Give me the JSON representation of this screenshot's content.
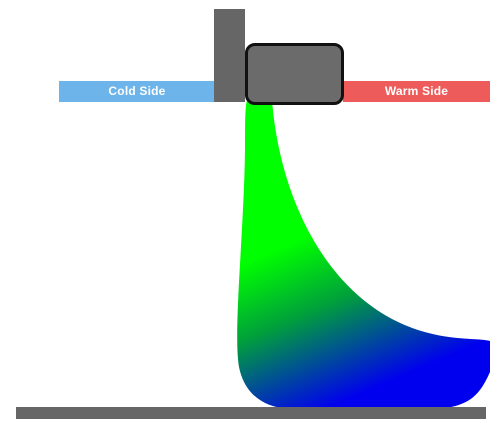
{
  "labels": {
    "cold": "Cold Side",
    "warm": "Warm Side"
  },
  "colors": {
    "cold": "#6db4ea",
    "warm": "#ee5b5b",
    "post": "#666666",
    "block": "#6b6b6b",
    "block_outline": "#111111",
    "floor": "#666666",
    "gradient_top": "#00ff00",
    "gradient_bottom": "#0000ee"
  }
}
